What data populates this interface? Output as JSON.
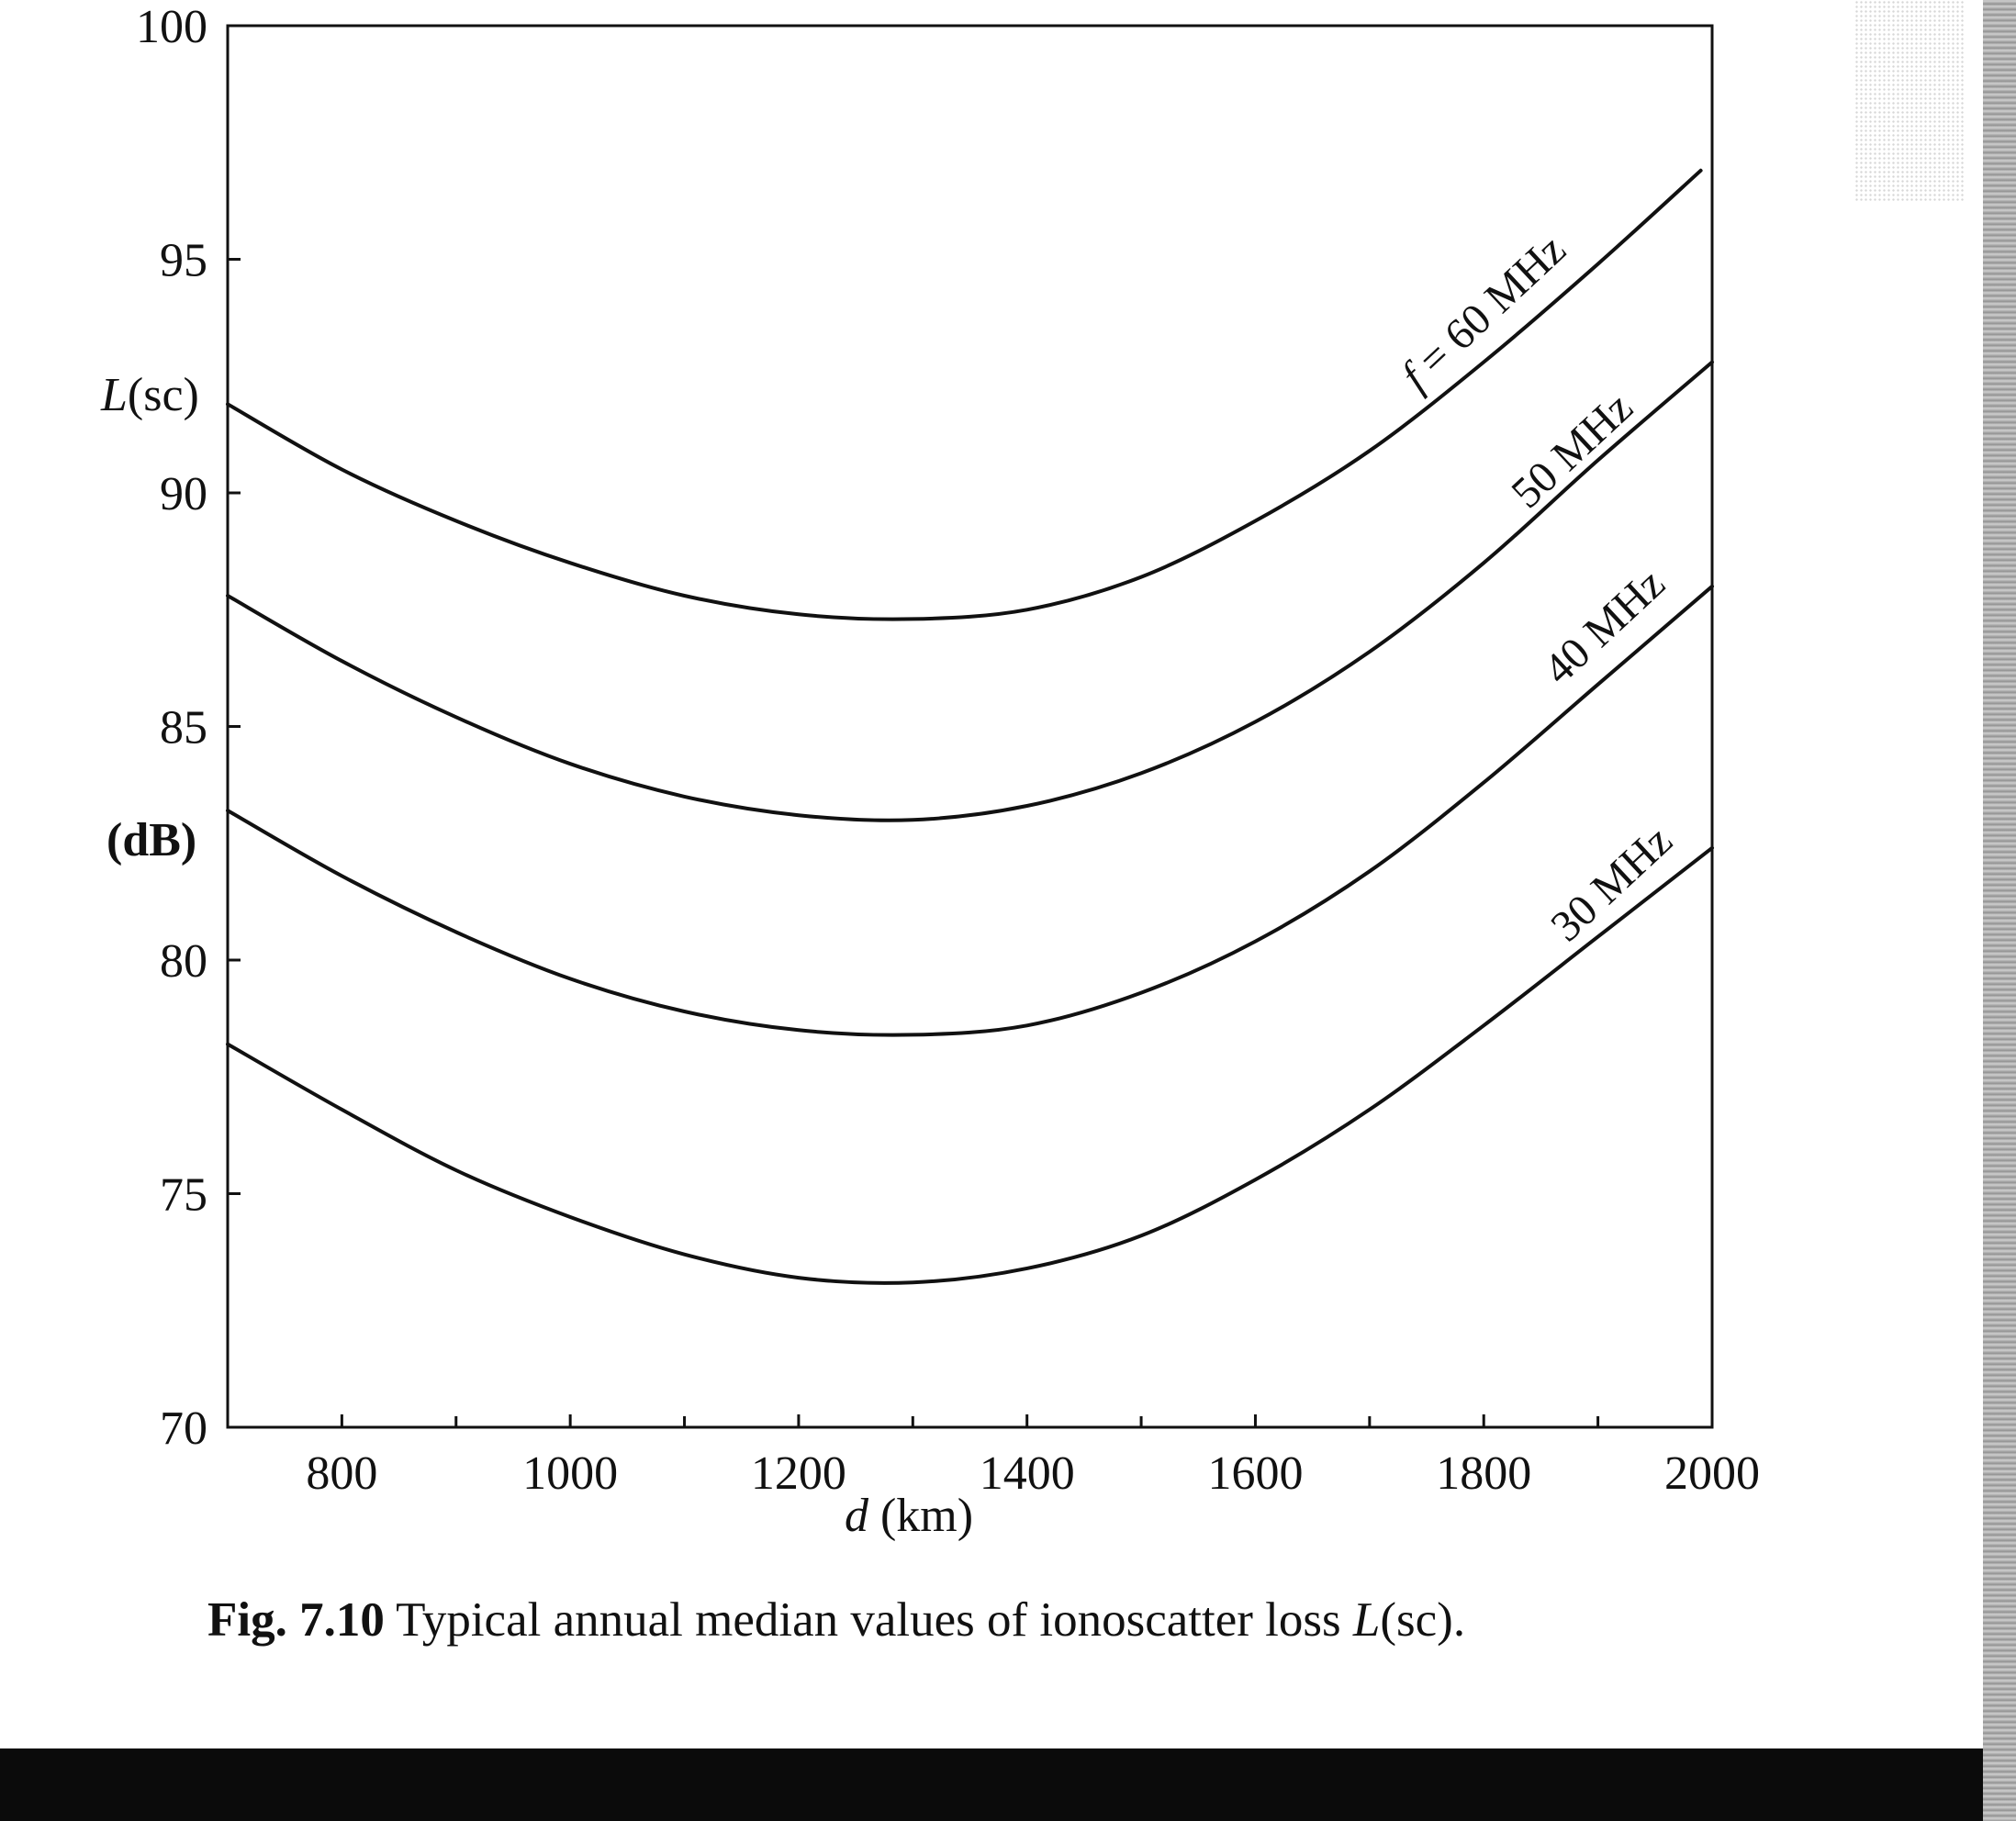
{
  "chart_data": {
    "type": "line",
    "x_domain": [
      700,
      2000
    ],
    "xticks_major": [
      800,
      1000,
      1200,
      1400,
      1600,
      1800,
      2000
    ],
    "xticks_minor": [
      900,
      1100,
      1300,
      1500,
      1700,
      1900
    ],
    "ylim": [
      70,
      100
    ],
    "yticks": [
      70,
      75,
      80,
      85,
      90,
      95,
      100
    ],
    "ylabel_lines": [
      "L(sc)",
      "(dB)"
    ],
    "xlabel": "d (km)",
    "grid": false,
    "series": [
      {
        "name": "f = 60 MHz",
        "x": [
          700,
          800,
          900,
          1000,
          1100,
          1200,
          1300,
          1400,
          1500,
          1600,
          1700,
          1800,
          1900,
          1990
        ],
        "y": [
          91.9,
          90.5,
          89.4,
          88.5,
          87.8,
          87.4,
          87.3,
          87.5,
          88.2,
          89.4,
          90.9,
          92.8,
          94.9,
          96.9
        ]
      },
      {
        "name": "50 MHz",
        "x": [
          700,
          800,
          900,
          1000,
          1100,
          1200,
          1300,
          1400,
          1500,
          1600,
          1700,
          1800,
          1900,
          2000
        ],
        "y": [
          87.8,
          86.4,
          85.2,
          84.2,
          83.5,
          83.1,
          83.0,
          83.3,
          84.0,
          85.1,
          86.6,
          88.5,
          90.7,
          92.8
        ]
      },
      {
        "name": "40 MHz",
        "x": [
          700,
          800,
          900,
          1000,
          1100,
          1200,
          1300,
          1400,
          1500,
          1600,
          1700,
          1800,
          1900,
          2000
        ],
        "y": [
          83.2,
          81.8,
          80.6,
          79.6,
          78.9,
          78.5,
          78.4,
          78.6,
          79.3,
          80.4,
          81.9,
          83.8,
          85.9,
          88.0
        ]
      },
      {
        "name": "30 MHz",
        "x": [
          700,
          800,
          900,
          1000,
          1100,
          1200,
          1300,
          1400,
          1500,
          1600,
          1700,
          1800,
          1900,
          2000
        ],
        "y": [
          78.2,
          76.8,
          75.5,
          74.5,
          73.7,
          73.2,
          73.1,
          73.4,
          74.1,
          75.3,
          76.8,
          78.6,
          80.5,
          82.4
        ]
      }
    ]
  },
  "labels": {
    "ylabel_top": "L",
    "ylabel_top_suffix": "(sc)",
    "ylabel_bottom": "(dB)",
    "xlabel_var": "d",
    "xlabel_unit": " (km)",
    "series_60_prefix": "f",
    "series_60_rest": " = 60 MHz",
    "series_50": "50 MHz",
    "series_40": "40 MHz",
    "series_30": "30 MHz"
  },
  "caption": {
    "fig_number": "Fig. 7.10",
    "text": "  Typical annual median values of ionoscatter loss ",
    "var": "L",
    "suffix": "(sc)."
  }
}
